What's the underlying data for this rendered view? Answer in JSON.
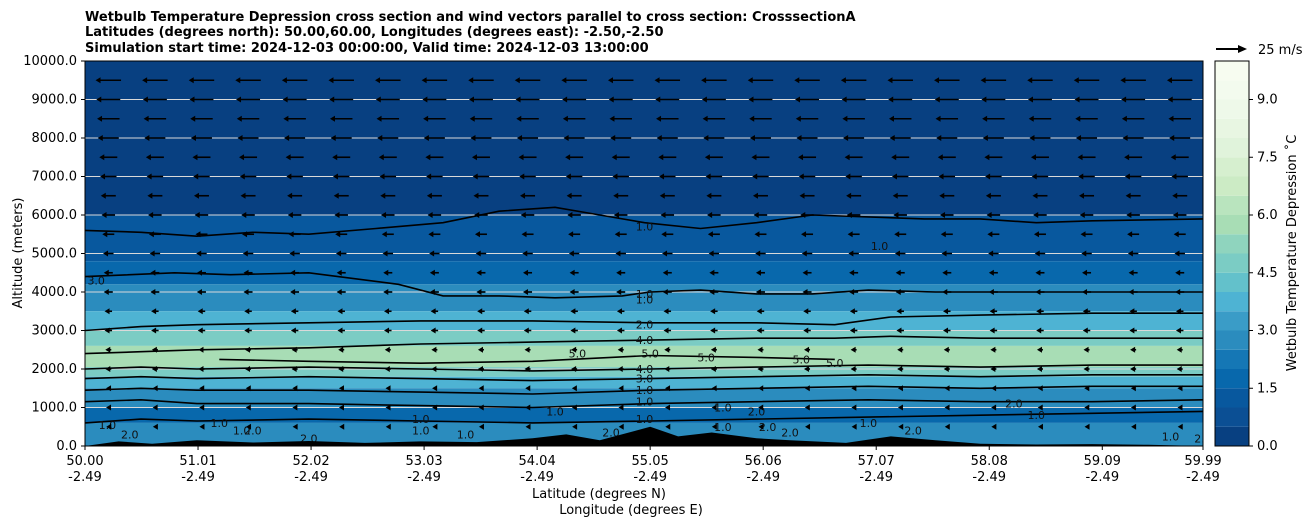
{
  "chart_data": {
    "type": "contour",
    "title_lines": [
      "Wetbulb Temperature Depression cross section and wind vectors parallel to cross section: CrosssectionA",
      "Latitudes (degrees north): 50.00,60.00, Longitudes (degrees east): -2.50,-2.50",
      "Simulation start time: 2024-12-03 00:00:00, Valid time: 2024-12-03 13:00:00"
    ],
    "ylabel": "Altitude (meters)",
    "xlabel_lat": "Latitude (degrees N)",
    "xlabel_lon": "Longitude (degrees E)",
    "y_ticks": [
      "0.0",
      "1000.0",
      "2000.0",
      "3000.0",
      "4000.0",
      "5000.0",
      "6000.0",
      "7000.0",
      "8000.0",
      "9000.0",
      "10000.0"
    ],
    "ylim": [
      0,
      10000
    ],
    "grid": "horizontal",
    "x_ticks_lat": [
      "50.00",
      "51.01",
      "52.02",
      "53.03",
      "54.04",
      "55.05",
      "56.06",
      "57.07",
      "58.08",
      "59.09",
      "59.99"
    ],
    "x_ticks_lon": [
      "-2.49",
      "-2.49",
      "-2.49",
      "-2.49",
      "-2.49",
      "-2.49",
      "-2.49",
      "-2.49",
      "-2.49",
      "-2.49",
      "-2.49"
    ],
    "xlim": [
      50.0,
      59.99
    ],
    "colorbar": {
      "label": "Wetbulb Temperature Depression ˚C",
      "ticks": [
        "0.0",
        "1.5",
        "3.0",
        "4.5",
        "6.0",
        "7.5",
        "9.0"
      ],
      "range": [
        0,
        10
      ],
      "colors": [
        "#084081",
        "#08589e",
        "#0868ac",
        "#2b8cbe",
        "#4eb3d3",
        "#7bccc4",
        "#a8ddb5",
        "#ccebc5",
        "#e0f3db",
        "#f7fcf0"
      ]
    },
    "wind_key": "25 m/s",
    "contour_labels": [
      "1.0",
      "1.0",
      "1.0",
      "2.0",
      "4.0",
      "5.0",
      "5.0",
      "5.0",
      "5.0",
      "5.0",
      "4.0",
      "3.0",
      "1.0",
      "1.0",
      "1.0",
      "1.0",
      "2.0",
      "2.0",
      "1.0",
      "1.0",
      "1.0",
      "2.0",
      "1.0",
      "1.0",
      "2.0",
      "1.0",
      "3.0",
      "1.0",
      "1.0",
      "2.0",
      "1.0",
      "2.0",
      "1.0",
      "2.0",
      "2.0",
      "1.0",
      "2.0",
      "1.0",
      "2.0"
    ],
    "contours": [
      {
        "level": 1.0,
        "points": [
          [
            50.0,
            5600
          ],
          [
            50.5,
            5550
          ],
          [
            51.0,
            5450
          ],
          [
            51.5,
            5550
          ],
          [
            52.0,
            5500
          ],
          [
            52.6,
            5650
          ],
          [
            53.2,
            5800
          ],
          [
            53.7,
            6100
          ],
          [
            54.2,
            6200
          ],
          [
            54.6,
            6000
          ],
          [
            55.0,
            5800
          ],
          [
            55.5,
            5650
          ],
          [
            56.0,
            5800
          ],
          [
            56.5,
            6000
          ],
          [
            57.0,
            5950
          ],
          [
            57.5,
            5900
          ],
          [
            58.0,
            5900
          ],
          [
            58.5,
            5800
          ],
          [
            59.0,
            5850
          ],
          [
            59.99,
            5900
          ]
        ]
      },
      {
        "level": 1.0,
        "points": [
          [
            50.0,
            4400
          ],
          [
            50.8,
            4500
          ],
          [
            51.3,
            4450
          ],
          [
            52.0,
            4500
          ],
          [
            52.8,
            4200
          ],
          [
            53.2,
            3900
          ],
          [
            53.7,
            3900
          ],
          [
            54.2,
            3850
          ],
          [
            54.8,
            3900
          ],
          [
            55.05,
            4000
          ],
          [
            55.5,
            4050
          ],
          [
            56.0,
            3950
          ],
          [
            56.5,
            3950
          ],
          [
            57.0,
            4050
          ],
          [
            57.6,
            4000
          ],
          [
            58.2,
            4000
          ],
          [
            59.0,
            4000
          ],
          [
            59.99,
            4000
          ]
        ]
      },
      {
        "level": 2.0,
        "points": [
          [
            50.0,
            3000
          ],
          [
            50.5,
            3100
          ],
          [
            51.0,
            3150
          ],
          [
            52.0,
            3200
          ],
          [
            53.0,
            3250
          ],
          [
            54.0,
            3250
          ],
          [
            55.05,
            3200
          ],
          [
            56.0,
            3200
          ],
          [
            56.7,
            3150
          ],
          [
            57.2,
            3350
          ],
          [
            58.0,
            3400
          ],
          [
            59.0,
            3450
          ],
          [
            59.99,
            3450
          ]
        ]
      },
      {
        "level": 4.0,
        "points": [
          [
            50.0,
            2400
          ],
          [
            50.5,
            2450
          ],
          [
            51.0,
            2500
          ],
          [
            52.0,
            2550
          ],
          [
            53.0,
            2650
          ],
          [
            54.0,
            2700
          ],
          [
            55.05,
            2750
          ],
          [
            56.0,
            2800
          ],
          [
            56.7,
            2800
          ],
          [
            57.2,
            2850
          ],
          [
            58.0,
            2800
          ],
          [
            59.0,
            2800
          ],
          [
            59.99,
            2800
          ]
        ]
      },
      {
        "level": 5.0,
        "points": [
          [
            51.2,
            2250
          ],
          [
            52.0,
            2200
          ],
          [
            53.0,
            2150
          ],
          [
            54.0,
            2200
          ],
          [
            55.05,
            2350
          ],
          [
            56.0,
            2300
          ],
          [
            56.7,
            2250
          ]
        ]
      },
      {
        "level": 4.0,
        "points": [
          [
            50.0,
            2000
          ],
          [
            50.5,
            2050
          ],
          [
            51.0,
            2000
          ],
          [
            52.0,
            2050
          ],
          [
            53.0,
            2000
          ],
          [
            54.0,
            1950
          ],
          [
            55.05,
            2000
          ],
          [
            56.0,
            2050
          ],
          [
            57.0,
            2100
          ],
          [
            58.0,
            2050
          ],
          [
            59.0,
            2100
          ],
          [
            59.99,
            2100
          ]
        ]
      },
      {
        "level": 3.0,
        "points": [
          [
            50.0,
            1750
          ],
          [
            50.5,
            1800
          ],
          [
            51.0,
            1750
          ],
          [
            52.0,
            1800
          ],
          [
            53.0,
            1750
          ],
          [
            54.0,
            1700
          ],
          [
            55.05,
            1750
          ],
          [
            56.0,
            1800
          ],
          [
            57.0,
            1850
          ],
          [
            58.0,
            1800
          ],
          [
            59.0,
            1850
          ],
          [
            59.99,
            1850
          ]
        ]
      },
      {
        "level": 2.0,
        "points": [
          [
            50.0,
            1450
          ],
          [
            50.5,
            1500
          ],
          [
            51.0,
            1450
          ],
          [
            52.0,
            1450
          ],
          [
            53.0,
            1400
          ],
          [
            54.0,
            1350
          ],
          [
            55.05,
            1450
          ],
          [
            56.0,
            1500
          ],
          [
            57.0,
            1550
          ],
          [
            58.0,
            1500
          ],
          [
            59.0,
            1550
          ],
          [
            59.99,
            1550
          ]
        ]
      },
      {
        "level": 1.0,
        "points": [
          [
            50.0,
            1150
          ],
          [
            50.5,
            1200
          ],
          [
            51.0,
            1100
          ],
          [
            52.0,
            1100
          ],
          [
            53.0,
            1050
          ],
          [
            54.0,
            1000
          ],
          [
            55.05,
            1100
          ],
          [
            56.0,
            1150
          ],
          [
            57.0,
            1200
          ],
          [
            58.0,
            1150
          ],
          [
            59.0,
            1150
          ],
          [
            59.99,
            1200
          ]
        ]
      },
      {
        "level": 2.0,
        "points": [
          [
            50.0,
            600
          ],
          [
            50.5,
            700
          ],
          [
            51.0,
            650
          ],
          [
            52.0,
            700
          ],
          [
            53.0,
            650
          ],
          [
            54.0,
            600
          ],
          [
            55.05,
            650
          ],
          [
            56.0,
            700
          ],
          [
            57.0,
            750
          ],
          [
            58.0,
            800
          ],
          [
            59.0,
            850
          ],
          [
            59.99,
            900
          ]
        ]
      }
    ],
    "terrain": [
      [
        50.0,
        0
      ],
      [
        50.3,
        120
      ],
      [
        50.6,
        60
      ],
      [
        51.0,
        150
      ],
      [
        51.5,
        90
      ],
      [
        52.0,
        130
      ],
      [
        52.5,
        80
      ],
      [
        53.0,
        120
      ],
      [
        53.5,
        100
      ],
      [
        54.0,
        200
      ],
      [
        54.3,
        300
      ],
      [
        54.6,
        150
      ],
      [
        55.05,
        500
      ],
      [
        55.3,
        250
      ],
      [
        55.6,
        350
      ],
      [
        56.0,
        200
      ],
      [
        56.3,
        150
      ],
      [
        56.8,
        80
      ],
      [
        57.2,
        250
      ],
      [
        57.6,
        150
      ],
      [
        58.0,
        60
      ],
      [
        58.5,
        40
      ],
      [
        59.0,
        50
      ],
      [
        59.5,
        30
      ],
      [
        59.99,
        0
      ]
    ],
    "wind_vectors": {
      "levels_m": [
        500,
        1000,
        1500,
        2000,
        2500,
        3000,
        3500,
        4000,
        4500,
        5000,
        5500,
        6000,
        6500,
        7000,
        7500,
        8000,
        8500,
        9000,
        9500
      ],
      "speed_ms": [
        2,
        3,
        3,
        4,
        4,
        5,
        5,
        6,
        6,
        7,
        8,
        9,
        10,
        11,
        12,
        14,
        15,
        16,
        17
      ],
      "direction": "negative_x"
    }
  }
}
